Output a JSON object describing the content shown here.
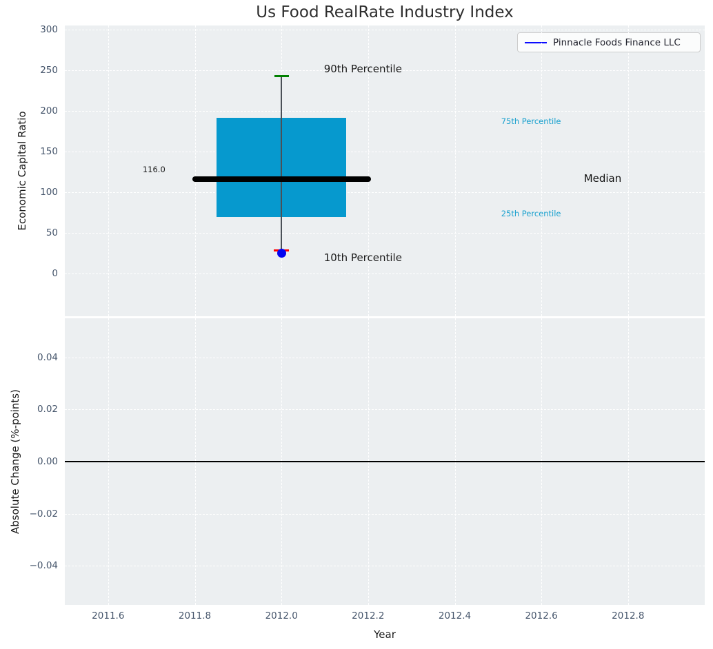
{
  "figure": {
    "title": "Us Food RealRate Industry Index",
    "background": "#ffffff",
    "axes_background": "#eceff1",
    "grid_color": "#ffffff",
    "tick_color": "#44546a"
  },
  "chart_data": [
    {
      "type": "boxplot",
      "title": "Us Food RealRate Industry Index",
      "xlabel": "Year",
      "ylabel": "Economic Capital Ratio",
      "grid": true,
      "legend": {
        "position": "upper right",
        "entries": [
          {
            "label": "Pinnacle Foods Finance LLC",
            "color": "#0b0bff"
          }
        ]
      },
      "xlim": [
        2011.5,
        2012.977
      ],
      "ylim": [
        -52.9,
        305.3
      ],
      "xticks": [
        "2011.6",
        "2011.8",
        "2012.0",
        "2012.2",
        "2012.4",
        "2012.6",
        "2012.8"
      ],
      "xtick_values": [
        2011.6,
        2011.8,
        2012.0,
        2012.2,
        2012.4,
        2012.6,
        2012.8
      ],
      "yticks": [
        "0",
        "50",
        "100",
        "150",
        "200",
        "250",
        "300"
      ],
      "ytick_values": [
        0,
        50,
        100,
        150,
        200,
        250,
        300
      ],
      "box": {
        "x": 2012.0,
        "p90": 243,
        "p75": 192,
        "median": 116,
        "p25": 69,
        "p10": 28,
        "company_value": 25,
        "box_x_left": 2011.85,
        "box_x_right": 2012.15,
        "median_x_left": 2011.8,
        "median_x_right": 2012.2,
        "box_color": "#0699ce",
        "median_color": "#000000",
        "whisker_color": "#4a5057",
        "cap_top_color": "#008000",
        "cap_bottom_color": "#ff0000",
        "marker_color": "#0404f0"
      },
      "annotations": [
        {
          "text": "116.0",
          "x": 2011.732,
          "y": 128,
          "color": "#1a1a1a",
          "size": 11.5,
          "align": "right"
        },
        {
          "text": "90th Percentile",
          "x": 2012.098,
          "y": 252,
          "color": "#1a1a1a",
          "size": 15,
          "align": "left"
        },
        {
          "text": "10th Percentile",
          "x": 2012.098,
          "y": 19,
          "color": "#1a1a1a",
          "size": 15,
          "align": "left"
        },
        {
          "text": "75th Percentile",
          "x": 2012.507,
          "y": 187,
          "color": "#18a0ce",
          "size": 11.5,
          "align": "left"
        },
        {
          "text": "25th Percentile",
          "x": 2012.507,
          "y": 74,
          "color": "#18a0ce",
          "size": 11.5,
          "align": "left"
        },
        {
          "text": "Median",
          "x": 2012.698,
          "y": 117,
          "color": "#111111",
          "size": 15,
          "align": "left"
        }
      ]
    },
    {
      "type": "line",
      "ylabel": "Absolute Change (%-points)",
      "grid": true,
      "xlim": [
        2011.5,
        2012.977
      ],
      "ylim": [
        -0.055,
        0.055
      ],
      "yticks": [
        "−0.04",
        "−0.02",
        "0.00",
        "0.02",
        "0.04"
      ],
      "ytick_values": [
        -0.04,
        -0.02,
        0.0,
        0.02,
        0.04
      ],
      "zero_line": {
        "y": 0.0,
        "color": "#000000"
      }
    }
  ]
}
